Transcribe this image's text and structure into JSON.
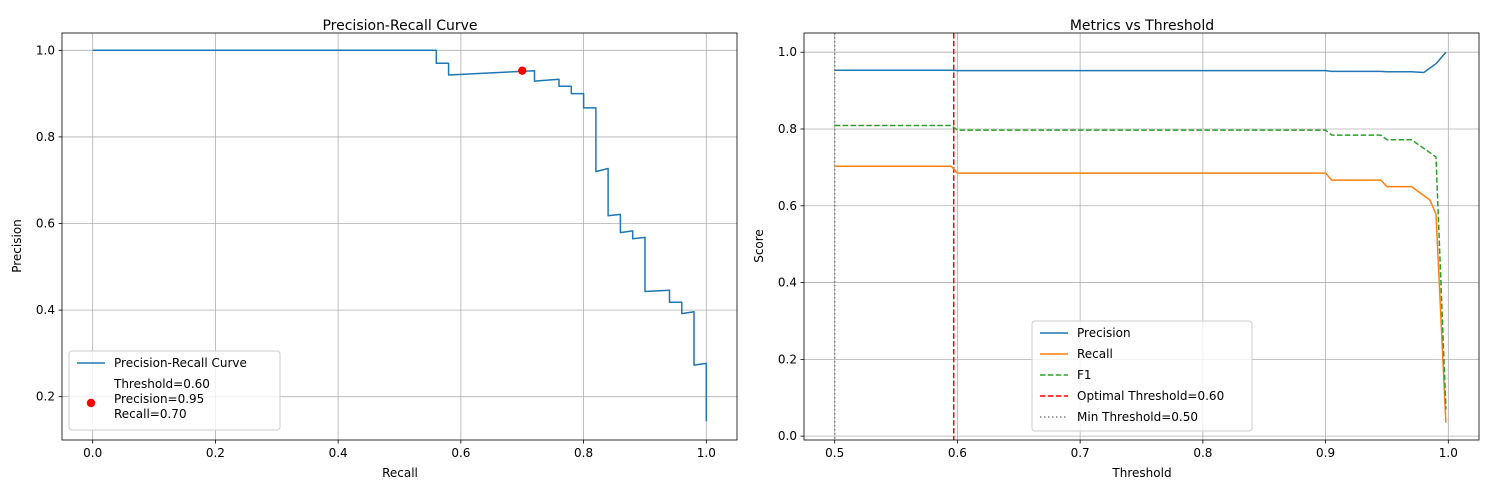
{
  "chart_data": [
    {
      "type": "line",
      "title": "Precision-Recall Curve",
      "xlabel": "Recall",
      "ylabel": "Precision",
      "xlim": [
        -0.05,
        1.05
      ],
      "ylim": [
        0.1,
        1.04
      ],
      "xticks": [
        "0.0",
        "0.2",
        "0.4",
        "0.6",
        "0.8",
        "1.0"
      ],
      "xtick_values": [
        0.0,
        0.2,
        0.4,
        0.6,
        0.8,
        1.0
      ],
      "yticks": [
        "0.2",
        "0.4",
        "0.6",
        "0.8",
        "1.0"
      ],
      "ytick_values": [
        0.2,
        0.4,
        0.6,
        0.8,
        1.0
      ],
      "grid": true,
      "legend_placement": "lower-left",
      "series": [
        {
          "name": "Precision-Recall Curve",
          "color": "#1f77b4",
          "x": [
            0.0,
            0.56,
            0.56,
            0.58,
            0.58,
            0.72,
            0.72,
            0.76,
            0.76,
            0.78,
            0.78,
            0.8,
            0.8,
            0.82,
            0.82,
            0.84,
            0.84,
            0.86,
            0.86,
            0.88,
            0.88,
            0.9,
            0.9,
            0.94,
            0.94,
            0.96,
            0.96,
            0.98,
            0.98,
            1.0,
            1.0
          ],
          "y": [
            1.0,
            1.0,
            0.97,
            0.97,
            0.943,
            0.953,
            0.929,
            0.933,
            0.917,
            0.917,
            0.9,
            0.9,
            0.867,
            0.867,
            0.72,
            0.727,
            0.618,
            0.621,
            0.579,
            0.583,
            0.565,
            0.568,
            0.443,
            0.446,
            0.418,
            0.418,
            0.392,
            0.396,
            0.273,
            0.277,
            0.143
          ]
        }
      ],
      "point": {
        "x": 0.7,
        "y": 0.953,
        "color": "#ff0000",
        "label_lines": [
          "Threshold=0.60",
          "Precision=0.95",
          "Recall=0.70"
        ]
      }
    },
    {
      "type": "line",
      "title": "Metrics vs Threshold",
      "xlabel": "Threshold",
      "ylabel": "Score",
      "xlim": [
        0.475,
        1.025
      ],
      "ylim": [
        -0.01,
        1.05
      ],
      "xticks": [
        "0.5",
        "0.6",
        "0.7",
        "0.8",
        "0.9",
        "1.0"
      ],
      "xtick_values": [
        0.5,
        0.6,
        0.7,
        0.8,
        0.9,
        1.0
      ],
      "yticks": [
        "0.0",
        "0.2",
        "0.4",
        "0.6",
        "0.8",
        "1.0"
      ],
      "ytick_values": [
        0.0,
        0.2,
        0.4,
        0.6,
        0.8,
        1.0
      ],
      "grid": true,
      "legend_placement": "lower-center",
      "series": [
        {
          "name": "Precision",
          "color": "#1f77b4",
          "dash": "solid",
          "x": [
            0.5,
            0.595,
            0.6,
            0.7,
            0.8,
            0.9,
            0.905,
            0.945,
            0.95,
            0.97,
            0.98,
            0.99,
            0.998
          ],
          "y": [
            0.953,
            0.953,
            0.952,
            0.952,
            0.952,
            0.952,
            0.95,
            0.95,
            0.949,
            0.949,
            0.947,
            0.97,
            1.0
          ]
        },
        {
          "name": "Recall",
          "color": "#ff7f0e",
          "dash": "solid",
          "x": [
            0.5,
            0.595,
            0.6,
            0.7,
            0.8,
            0.9,
            0.905,
            0.945,
            0.95,
            0.965,
            0.97,
            0.985,
            0.99,
            0.998
          ],
          "y": [
            0.703,
            0.703,
            0.685,
            0.685,
            0.685,
            0.685,
            0.667,
            0.667,
            0.65,
            0.65,
            0.65,
            0.615,
            0.578,
            0.035
          ]
        },
        {
          "name": "F1",
          "color": "#2ca02c",
          "dash": "dashed",
          "x": [
            0.5,
            0.595,
            0.6,
            0.7,
            0.8,
            0.9,
            0.905,
            0.945,
            0.95,
            0.97,
            0.99,
            0.998
          ],
          "y": [
            0.809,
            0.809,
            0.797,
            0.797,
            0.797,
            0.797,
            0.784,
            0.784,
            0.772,
            0.772,
            0.727,
            0.07
          ]
        }
      ],
      "vlines": [
        {
          "name": "Optimal Threshold=0.60",
          "x": 0.597,
          "color": "#ff0000",
          "dash": "dashed"
        },
        {
          "name": "Min Threshold=0.50",
          "x": 0.5,
          "color": "#808080",
          "dash": "dotted"
        }
      ]
    }
  ]
}
